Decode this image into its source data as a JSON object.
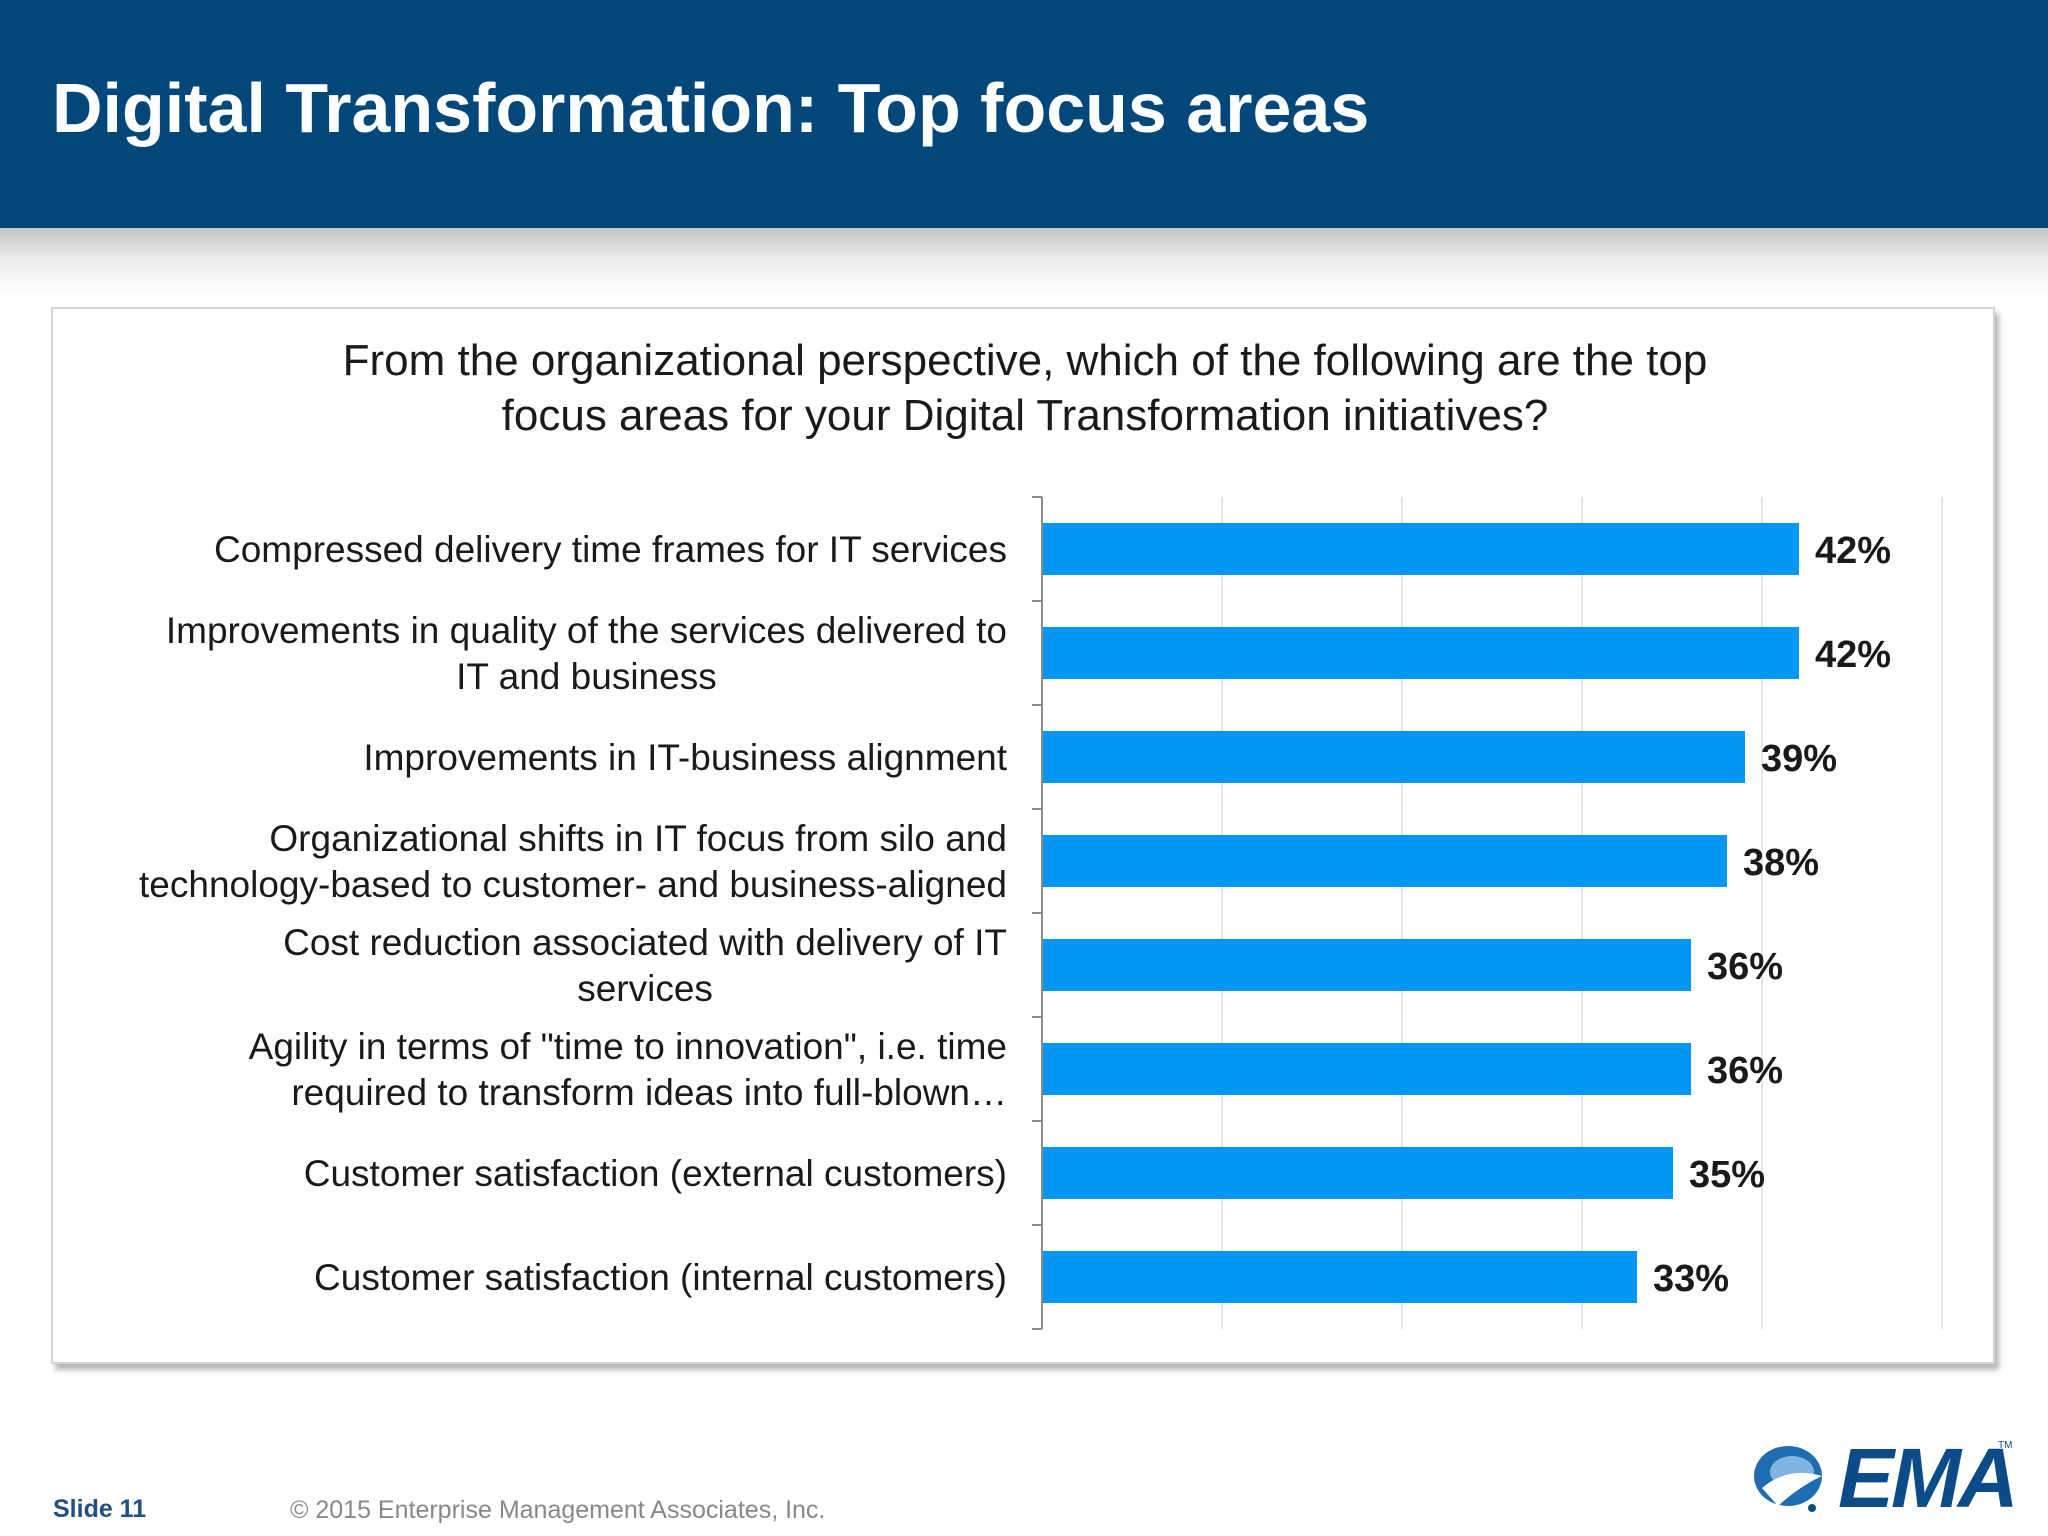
{
  "slide": {
    "title": "Digital Transformation: Top focus areas",
    "footer_slide_label": "Slide 11",
    "footer_copyright": "© 2015 Enterprise Management Associates, Inc.",
    "logo_text": "EMA",
    "logo_tm": "TM",
    "logo_icon": "ema-swirl-icon"
  },
  "colors": {
    "header_bg": "#02477a",
    "bar": "#0096f3",
    "text": "#1a1a1a"
  },
  "chart_data": {
    "type": "bar",
    "orientation": "horizontal",
    "title": "From the organizational perspective, which of the following are the top focus areas for your Digital Transformation initiatives?",
    "title_lines": [
      "From the organizational perspective, which of the following are the top",
      "focus areas for your Digital Transformation initiatives?"
    ],
    "categories": [
      [
        "Compressed delivery time frames for IT services"
      ],
      [
        "Improvements in quality of the services delivered to",
        "IT and business"
      ],
      [
        "Improvements in IT-business alignment"
      ],
      [
        "Organizational shifts in IT focus from silo and",
        "technology-based to customer- and business-aligned"
      ],
      [
        "Cost reduction associated with delivery of IT",
        "services"
      ],
      [
        "Agility in terms of \"time to innovation\", i.e. time",
        "required to transform ideas into full-blown…"
      ],
      [
        "Customer satisfaction (external customers)"
      ],
      [
        "Customer satisfaction (internal customers)"
      ]
    ],
    "values": [
      42,
      42,
      39,
      38,
      36,
      36,
      35,
      33
    ],
    "data_labels": [
      "42%",
      "42%",
      "39%",
      "38%",
      "36%",
      "36%",
      "35%",
      "33%"
    ],
    "xlim": [
      0,
      50
    ],
    "grid": true,
    "xlabel": "",
    "ylabel": ""
  }
}
